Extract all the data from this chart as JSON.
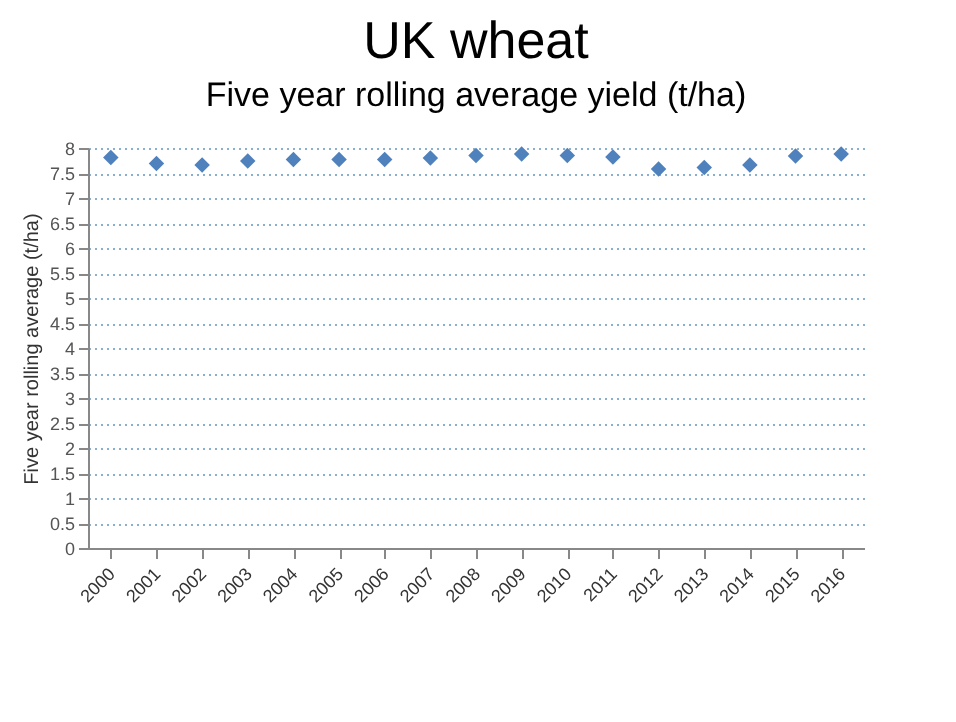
{
  "chart_data": {
    "type": "scatter",
    "title": "UK wheat",
    "subtitle": "Five year rolling average yield (t/ha)",
    "ylabel": "Five year rolling average (t/ha)",
    "categories": [
      "2000",
      "2001",
      "2002",
      "2003",
      "2004",
      "2005",
      "2006",
      "2007",
      "2008",
      "2009",
      "2010",
      "2011",
      "2012",
      "2013",
      "2014",
      "2015",
      "2016"
    ],
    "series": [
      {
        "color": "#4f81bd",
        "values": [
          7.81,
          7.69,
          7.66,
          7.74,
          7.77,
          7.77,
          7.77,
          7.8,
          7.85,
          7.88,
          7.85,
          7.82,
          7.58,
          7.61,
          7.66,
          7.84,
          7.88
        ]
      }
    ],
    "ylim": [
      0,
      8
    ],
    "yticks": [
      0,
      0.5,
      1,
      1.5,
      2,
      2.5,
      3,
      3.5,
      4,
      4.5,
      5,
      5.5,
      6,
      6.5,
      7,
      7.5,
      8
    ],
    "grid": "y",
    "marker": "diamond"
  }
}
